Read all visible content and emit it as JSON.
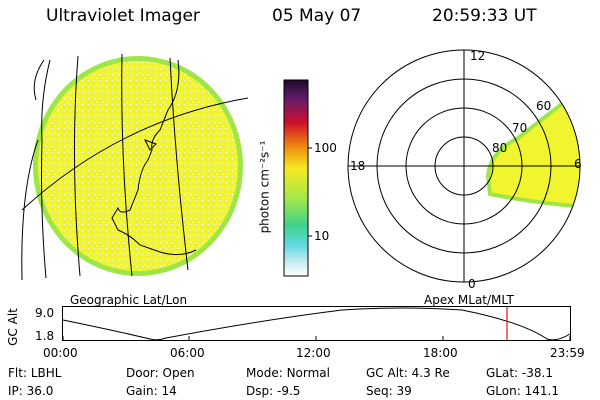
{
  "header": {
    "instrument": "Ultraviolet Imager",
    "date": "05 May 07",
    "time": "20:59:33 UT"
  },
  "colorbar": {
    "unit_label": "photon cm⁻²s⁻¹",
    "ticks": [
      "100",
      "10"
    ]
  },
  "maps": {
    "geographic_label": "Geographic Lat/Lon",
    "apex_label": "Apex MLat/MLT"
  },
  "polar_plot": {
    "mlt_labels": {
      "top": "12",
      "left": "18",
      "right": "6",
      "bottom": "0"
    },
    "lat_labels": [
      "60",
      "70",
      "80"
    ]
  },
  "altitude_plot": {
    "ylabel": "GC Alt",
    "y_max": "9.0",
    "y_min": "1.8",
    "x_ticks": [
      "00:00",
      "06:00",
      "12:00",
      "18:00",
      "23:59"
    ],
    "current_time_marker": "20:59"
  },
  "footer": {
    "row1": [
      {
        "label": "Flt:",
        "value": "LBHL"
      },
      {
        "label": "Door:",
        "value": "Open"
      },
      {
        "label": "Mode:",
        "value": "Normal"
      },
      {
        "label": "GC Alt:",
        "value": "4.3 Re"
      },
      {
        "label": "GLat:",
        "value": "-38.1"
      }
    ],
    "row2": [
      {
        "label": "IP:",
        "value": "36.0"
      },
      {
        "label": "Gain:",
        "value": "14"
      },
      {
        "label": "Dsp:",
        "value": "-9.5"
      },
      {
        "label": "Seq:",
        "value": "39"
      },
      {
        "label": "GLon:",
        "value": "141.1"
      }
    ]
  }
}
